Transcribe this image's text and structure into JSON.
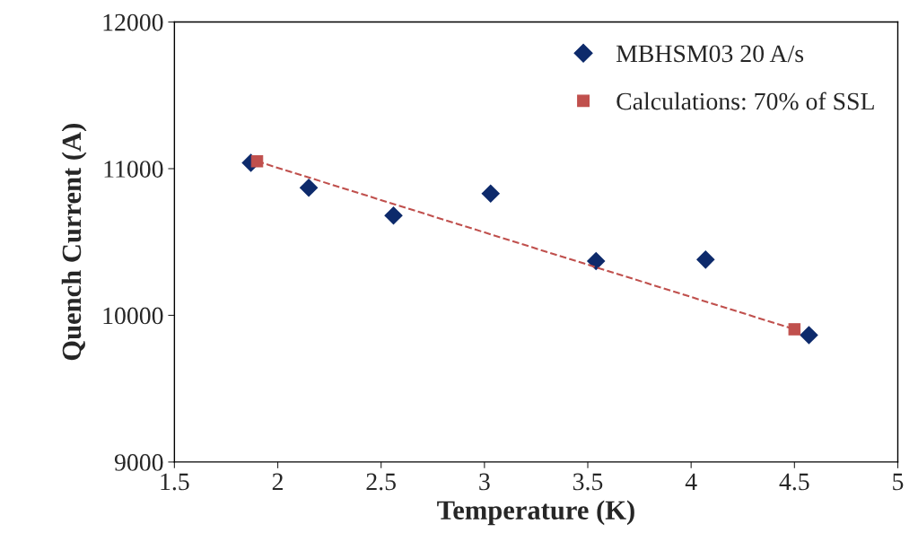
{
  "chart_data": {
    "type": "scatter",
    "xlabel": "Temperature (K)",
    "ylabel": "Quench Current (A)",
    "xlim": [
      1.5,
      5
    ],
    "xticks": [
      1.5,
      2,
      2.5,
      3,
      3.5,
      4,
      4.5,
      5
    ],
    "ylim": [
      9000,
      12000
    ],
    "yticks": [
      9000,
      10000,
      11000,
      12000
    ],
    "grid": false,
    "legend": "top right",
    "series": [
      {
        "name": "MBHSM03 20 A/s",
        "color": "#0d2a6b",
        "marker": "diamond",
        "x": [
          1.87,
          2.15,
          2.56,
          3.03,
          3.54,
          4.07,
          4.57
        ],
        "values": [
          11040,
          10870,
          10680,
          10830,
          10370,
          10380,
          9865
        ]
      },
      {
        "name": "Calculations: 70% of SSL",
        "type": "line",
        "color": "#c0504d",
        "line_style": "dashed",
        "marker": "square",
        "x": [
          1.9,
          4.5
        ],
        "values": [
          11050,
          9905
        ]
      }
    ]
  }
}
